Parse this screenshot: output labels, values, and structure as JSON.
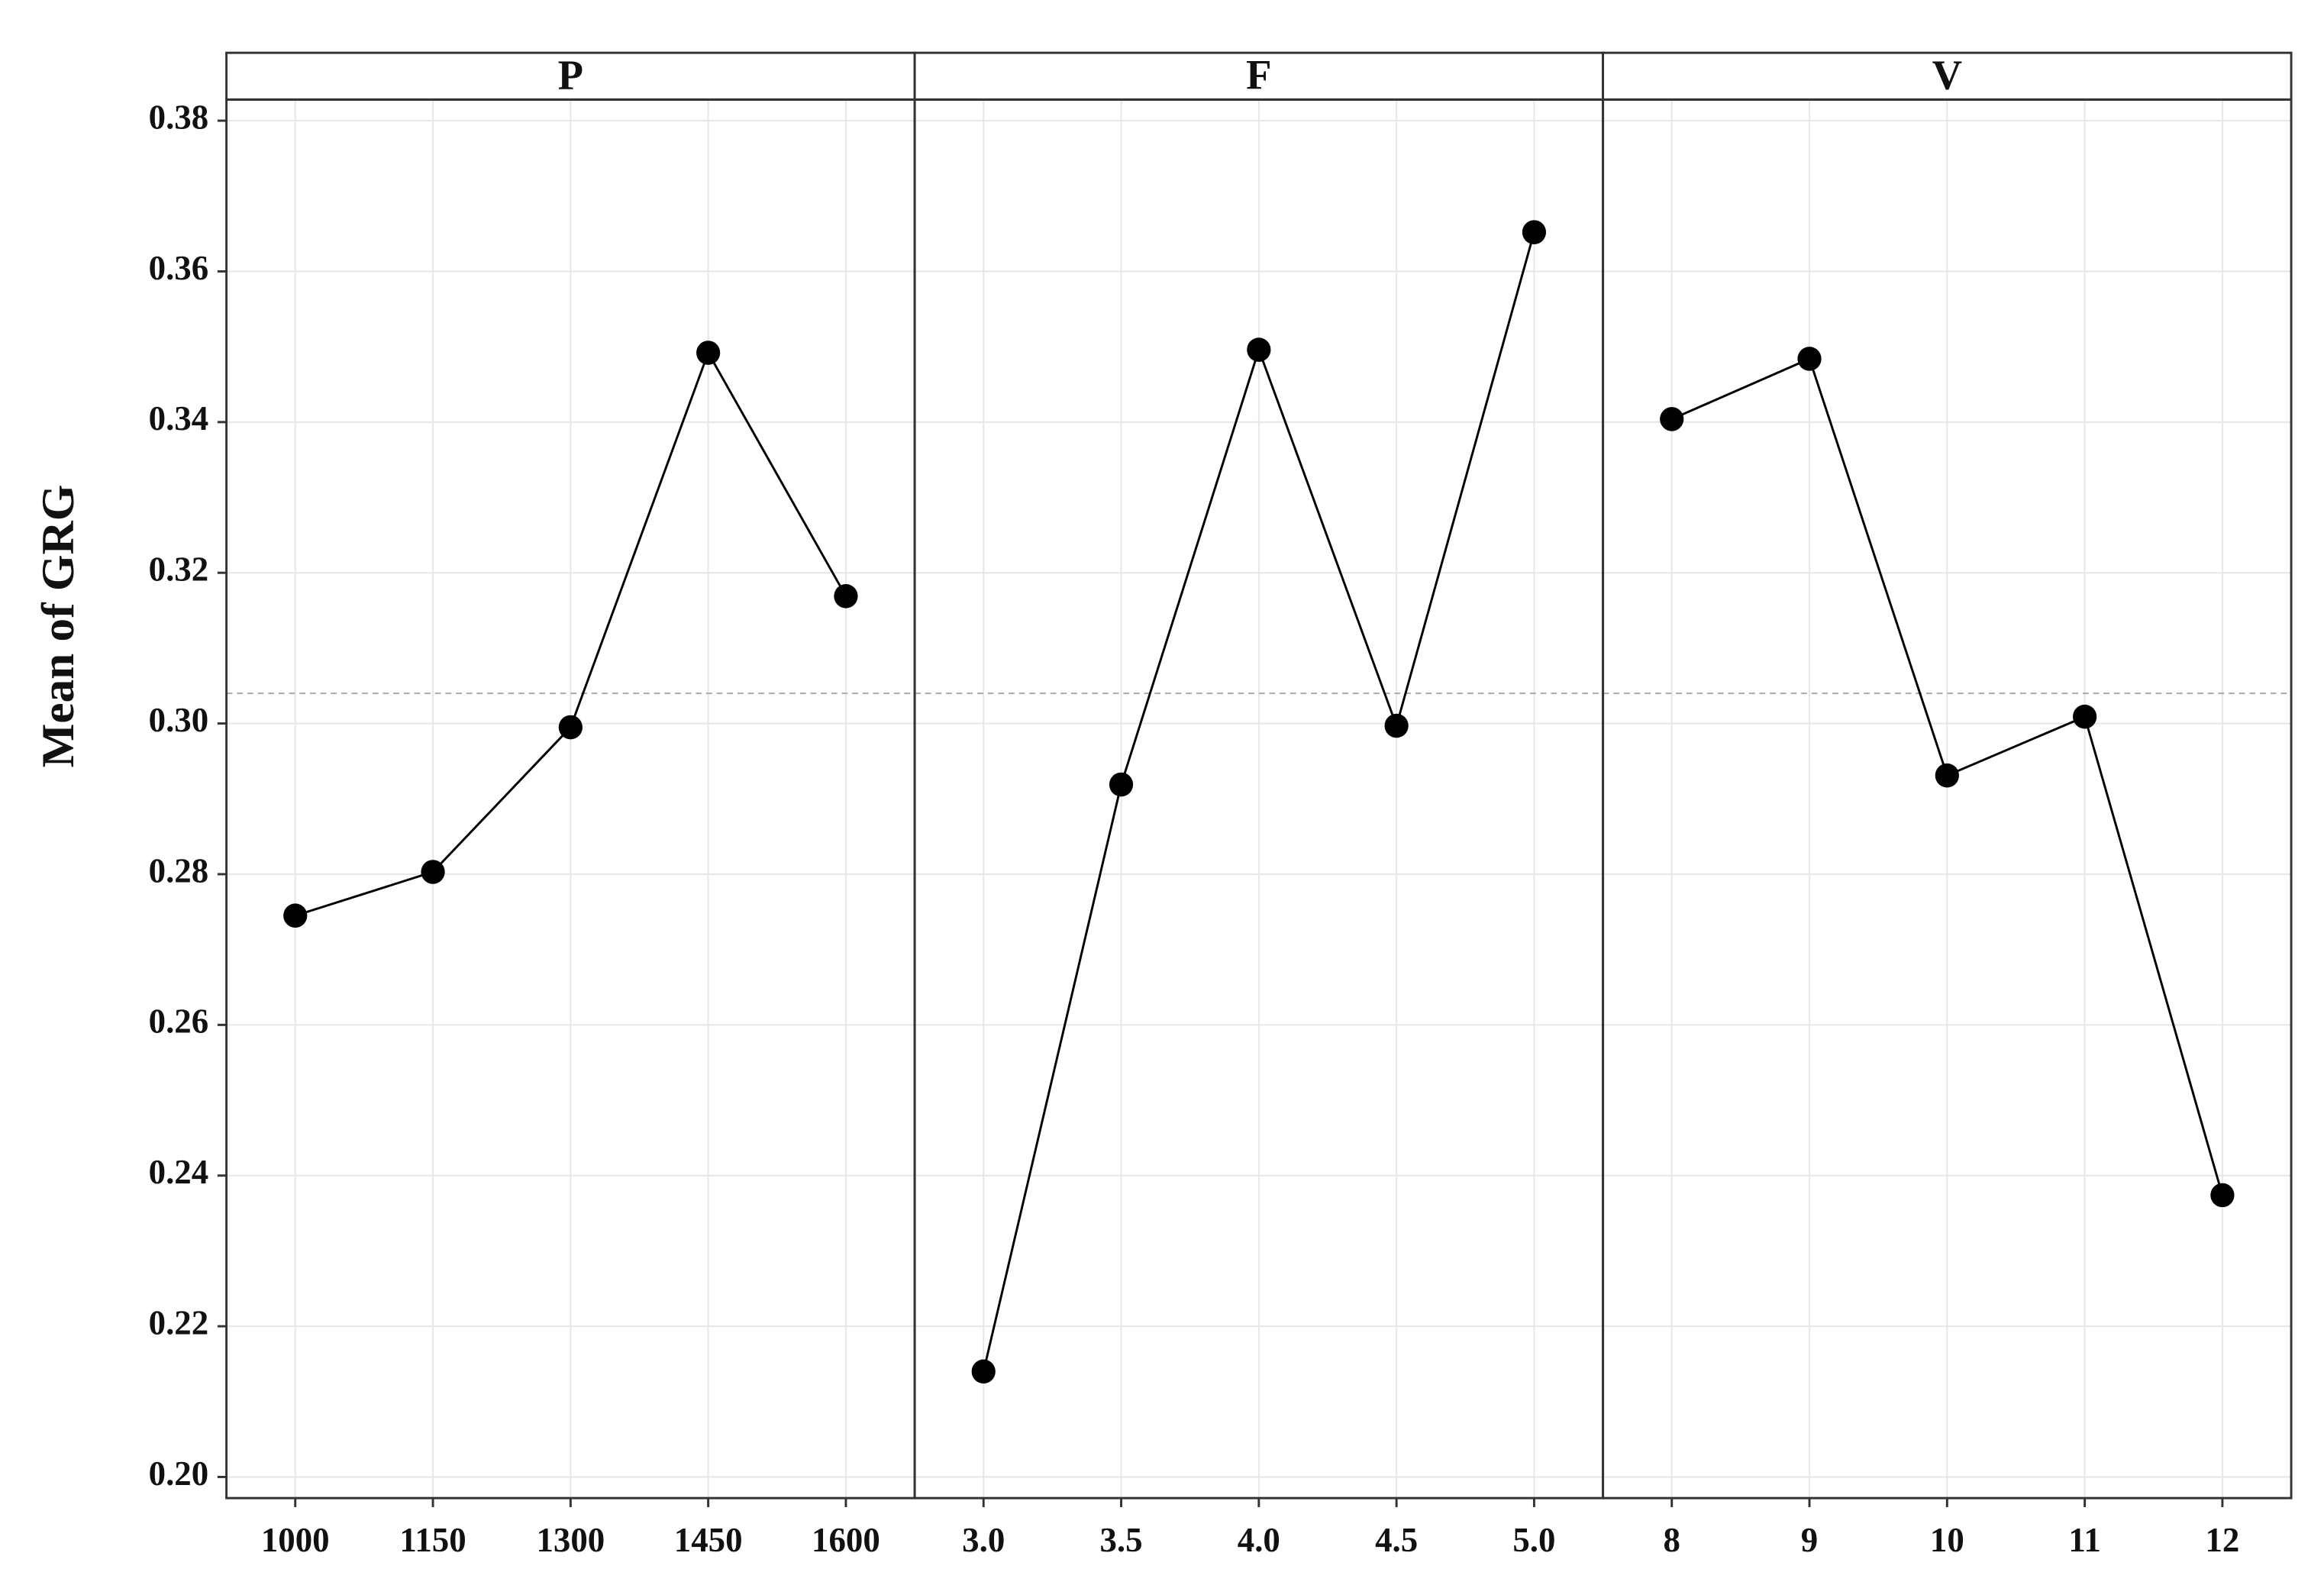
{
  "chart_data": {
    "type": "line",
    "ylabel": "Mean of GRG",
    "color": "#000000",
    "grid": true,
    "ylim": [
      0.2,
      0.38
    ],
    "yticks": [
      {
        "value": 0.2,
        "label": "0.20"
      },
      0.22,
      0.24,
      0.26,
      0.28,
      {
        "value": 0.3,
        "label": "0.30"
      },
      0.32,
      0.34,
      0.36,
      0.38
    ],
    "hline": 0.304,
    "panels": [
      {
        "title": "P",
        "categories": [
          "1000",
          "1150",
          "1300",
          "1450",
          "1600"
        ],
        "values": [
          0.2745,
          0.2803,
          0.2995,
          0.3492,
          0.3169
        ]
      },
      {
        "title": "F",
        "categories": [
          "3.0",
          "3.5",
          "4.0",
          "4.5",
          "5.0"
        ],
        "values": [
          0.214,
          0.2919,
          0.3496,
          0.2997,
          0.3652
        ]
      },
      {
        "title": "V",
        "categories": [
          "8",
          "9",
          "10",
          "11",
          "12"
        ],
        "values": [
          0.3404,
          0.3484,
          0.2931,
          0.3009,
          0.2374
        ]
      }
    ]
  }
}
